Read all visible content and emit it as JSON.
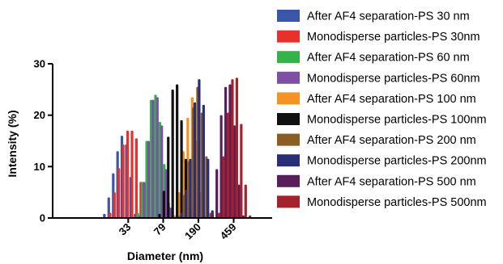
{
  "chart_data": {
    "type": "bar",
    "title": "",
    "xlabel": "Diameter (nm)",
    "ylabel": "Intensity (%)",
    "xscale": "log",
    "xlim": [
      5,
      1200
    ],
    "ylim": [
      0,
      30
    ],
    "yticks": [
      0,
      10,
      20,
      30
    ],
    "xticks": [
      33,
      79,
      190,
      459
    ],
    "grid": false,
    "legend_position": "right",
    "series": [
      {
        "name": "After AF4 separation-PS 30 nm",
        "color": "#3a56a8",
        "x": [
          18.2,
          20.3,
          22.7,
          25.3,
          28.2,
          31.5,
          35.1,
          39.2
        ],
        "values": [
          0.8,
          4.0,
          8.7,
          13.0,
          16.0,
          14.3,
          8.0,
          0.8
        ]
      },
      {
        "name": "Monodisperse  particles-PS 30nm",
        "color": "#e8312b",
        "x": [
          21.0,
          23.4,
          26.1,
          29.1,
          32.5,
          36.3,
          40.5,
          45.2
        ],
        "values": [
          1.0,
          5.0,
          9.7,
          14.3,
          17.0,
          17.0,
          15.5,
          7.0
        ]
      },
      {
        "name": "After AF4 separation-PS 60 nm",
        "color": "#35b34a",
        "x": [
          42.0,
          46.9,
          52.3,
          58.4,
          65.2,
          72.7,
          81.1,
          90.5
        ],
        "values": [
          1.0,
          7.0,
          15.0,
          23.0,
          24.0,
          18.7,
          10.5,
          3.0
        ]
      },
      {
        "name": "Monodisperse  particles-PS 60nm",
        "color": "#7f4fa8",
        "x": [
          44.0,
          49.1,
          54.8,
          61.2,
          68.3,
          76.2,
          85.0,
          94.9
        ],
        "values": [
          0.5,
          7.0,
          15.0,
          23.0,
          23.5,
          18.0,
          9.5,
          2.0
        ]
      },
      {
        "name": "After AF4 separation-PS 100 nm",
        "color": "#f39324",
        "x": [
          105.0,
          117.2,
          130.8,
          146.0,
          163.0,
          181.9,
          203.1,
          226.7
        ],
        "values": [
          0.5,
          5.0,
          13.0,
          19.5,
          23.5,
          15.0,
          5.0,
          0.5
        ]
      },
      {
        "name": "Monodisperse  particles-PS 100nm",
        "color": "#111111",
        "x": [
          72.0,
          80.4,
          89.7,
          100.1,
          111.8,
          124.8,
          139.3,
          155.5
        ],
        "values": [
          0.8,
          5.3,
          15.8,
          25.0,
          26.0,
          19.0,
          11.5,
          1.5
        ]
      },
      {
        "name": "After AF4 separation-PS 200 nm",
        "color": "#8a5d25",
        "x": [
          120.0,
          134.0,
          149.6,
          167.0,
          186.4,
          208.1,
          232.3,
          259.3
        ],
        "values": [
          0.5,
          4.5,
          11.0,
          21.5,
          25.5,
          20.5,
          12.0,
          1.0
        ]
      },
      {
        "name": "Monodisperse  particles-PS 200nm",
        "color": "#2a2e78",
        "x": [
          125.0,
          139.5,
          155.7,
          173.8,
          194.0,
          216.6,
          241.7,
          269.8
        ],
        "values": [
          1.0,
          5.5,
          11.5,
          22.5,
          27.0,
          22.0,
          11.5,
          1.5
        ]
      },
      {
        "name": "After AF4 separation-PS 500 nm",
        "color": "#5a1e5a",
        "x": [
          270.0,
          301.4,
          336.4,
          375.5,
          419.1,
          467.8,
          522.2,
          582.9
        ],
        "values": [
          1.0,
          9.5,
          20.0,
          25.5,
          26.0,
          18.0,
          6.5,
          0.5
        ]
      },
      {
        "name": "Monodisperse  particles-PS 500nm",
        "color": "#a3222b",
        "x": [
          320.0,
          357.2,
          398.7,
          445.1,
          496.8,
          554.6,
          619.0,
          691.0
        ],
        "values": [
          1.0,
          12.0,
          20.5,
          27.0,
          27.3,
          18.3,
          6.5,
          0.5
        ]
      }
    ]
  }
}
